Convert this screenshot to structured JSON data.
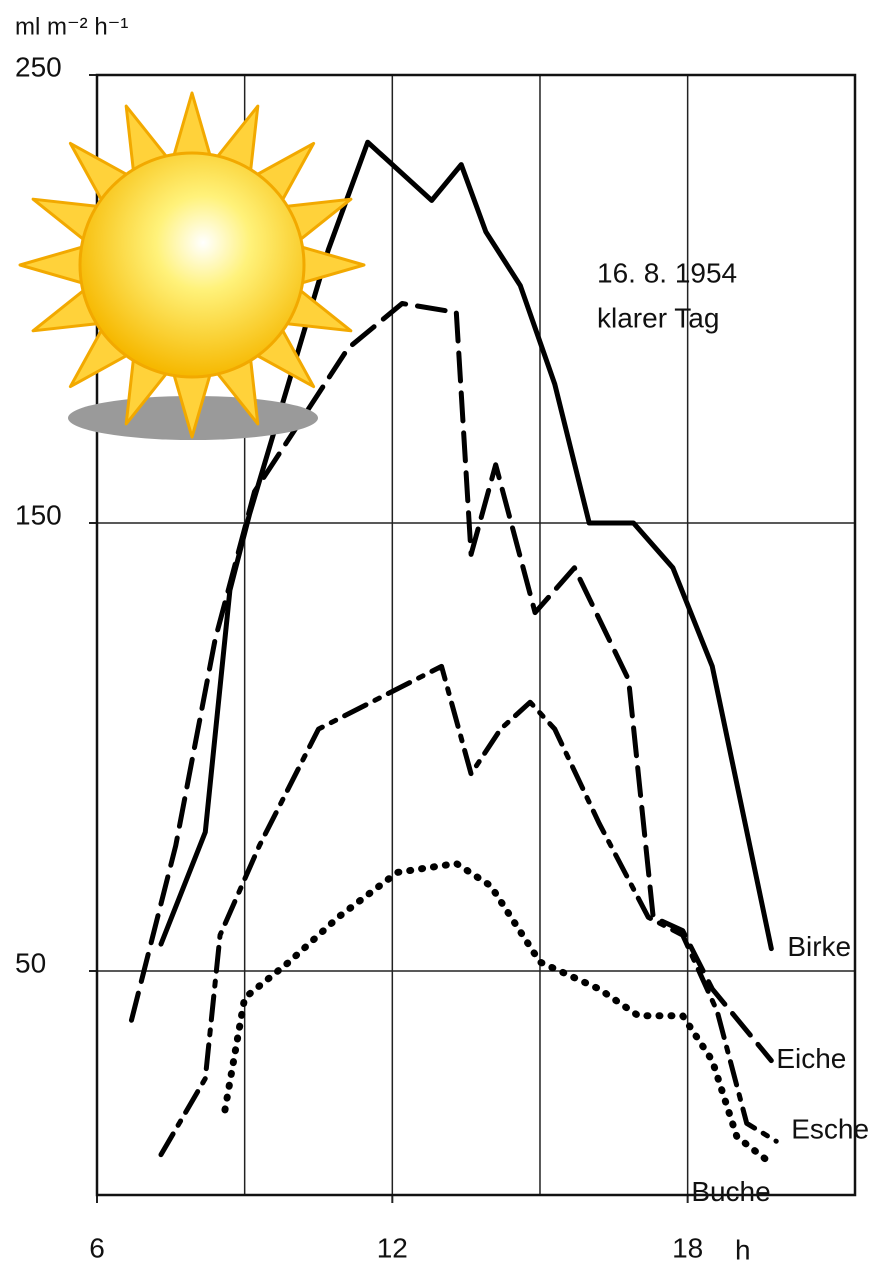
{
  "chart_data": {
    "type": "line",
    "y_label": "ml m⁻² h⁻¹",
    "x_label": "h",
    "annotations": [
      "16. 8. 1954",
      "klarer Tag"
    ],
    "xlim": [
      6,
      21.4
    ],
    "ylim": [
      0,
      250
    ],
    "xticks": [
      6,
      12,
      18
    ],
    "yticks": [
      50,
      150,
      250
    ],
    "xgrid": [
      9,
      12,
      15,
      18
    ],
    "ygrid": [
      50,
      150
    ],
    "series": [
      {
        "name": "Birke",
        "color": "#000000",
        "style": "solid",
        "x": [
          7.3,
          8.2,
          8.7,
          9.1,
          10.7,
          11.5,
          12.8,
          13.4,
          13.9,
          14.6,
          15.3,
          16.0,
          16.9,
          17.7,
          18.5,
          19.7
        ],
        "values": [
          56,
          81,
          135,
          152,
          211,
          235,
          222,
          230,
          215,
          203,
          181,
          150,
          150,
          140,
          118,
          55
        ]
      },
      {
        "name": "Eiche",
        "color": "#000000",
        "style": "dashed",
        "x": [
          6.7,
          7.6,
          8.4,
          9.2,
          11.1,
          12.2,
          13.3,
          13.6,
          14.1,
          14.9,
          15.7,
          16.8,
          17.3,
          17.9,
          18.5,
          19.7
        ],
        "values": [
          39,
          78,
          124,
          157,
          189,
          199,
          197,
          143,
          163,
          130,
          140,
          115,
          62,
          59,
          46,
          30
        ]
      },
      {
        "name": "Esche",
        "color": "#000000",
        "style": "dashdot",
        "x": [
          7.3,
          8.2,
          8.5,
          9.3,
          10.5,
          13.0,
          13.6,
          14.2,
          14.8,
          15.3,
          16.2,
          17.2,
          17.9,
          18.6,
          19.2,
          19.8
        ],
        "values": [
          9,
          26,
          58,
          78,
          104,
          118,
          94,
          104,
          110,
          104,
          83,
          62,
          58,
          41,
          16,
          12
        ]
      },
      {
        "name": "Buche",
        "color": "#000000",
        "style": "dotted",
        "x": [
          8.6,
          9.0,
          9.9,
          10.9,
          12.1,
          13.3,
          14.0,
          15.0,
          16.2,
          17.0,
          17.9,
          18.5,
          19.0,
          19.7
        ],
        "values": [
          19,
          44,
          52,
          62,
          72,
          74,
          69,
          52,
          46,
          40,
          40,
          30,
          13,
          7
        ]
      }
    ]
  }
}
